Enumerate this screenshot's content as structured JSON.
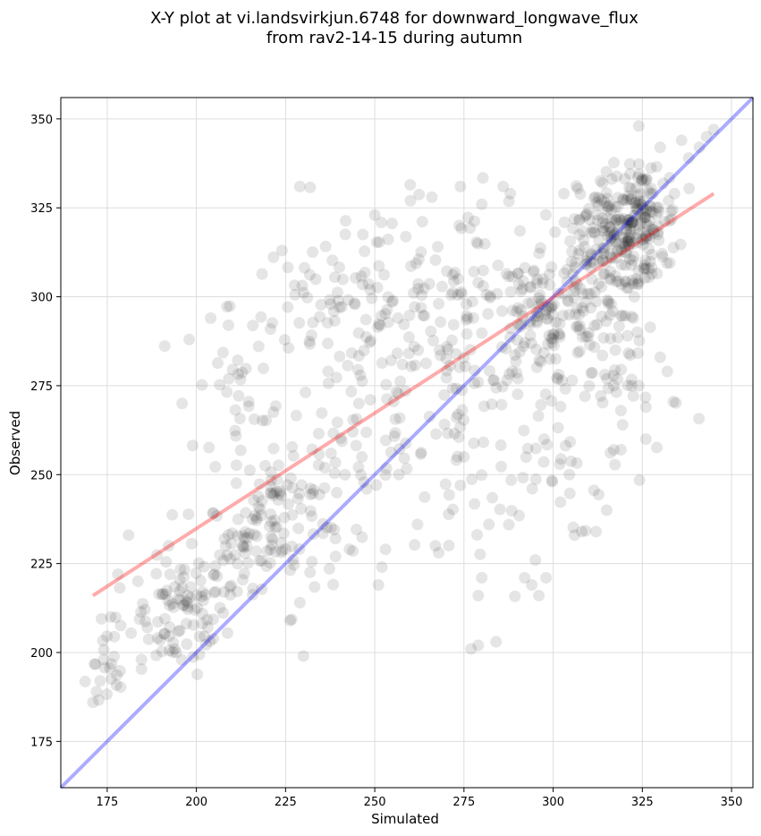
{
  "chart_data": {
    "type": "scatter",
    "title_line1": "X-Y plot at vi.landsvirkjun.6748 for downward_longwave_flux",
    "title_line2": "from rav2-14-15 during autumn",
    "xlabel": "Simulated",
    "ylabel": "Observed",
    "xlim": [
      162,
      356
    ],
    "ylim": [
      162,
      356
    ],
    "x_ticks": [
      175,
      200,
      225,
      250,
      275,
      300,
      325,
      350
    ],
    "y_ticks": [
      175,
      200,
      225,
      250,
      275,
      300,
      325,
      350
    ],
    "grid": true,
    "marker_color": "#000000",
    "marker_alpha": 0.1,
    "identity_line": {
      "color": "#0000ff",
      "alpha": 0.33,
      "from": [
        162,
        162
      ],
      "to": [
        356,
        356
      ]
    },
    "fit_line": {
      "color": "#ff0000",
      "alpha": 0.33,
      "from": [
        171,
        216
      ],
      "to": [
        345,
        329
      ]
    },
    "clusters": [
      {
        "cx": 175,
        "cy": 195,
        "sx": 3,
        "sy": 6,
        "n": 14
      },
      {
        "cx": 180,
        "cy": 206,
        "sx": 4,
        "sy": 6,
        "n": 12
      },
      {
        "cx": 196,
        "cy": 210,
        "sx": 6,
        "sy": 8,
        "n": 85
      },
      {
        "cx": 207,
        "cy": 228,
        "sx": 6,
        "sy": 10,
        "n": 40
      },
      {
        "cx": 212,
        "cy": 270,
        "sx": 6,
        "sy": 14,
        "n": 30
      },
      {
        "cx": 222,
        "cy": 237,
        "sx": 6,
        "sy": 9,
        "n": 80
      },
      {
        "cx": 237,
        "cy": 250,
        "sx": 10,
        "sy": 12,
        "n": 45
      },
      {
        "cx": 238,
        "cy": 298,
        "sx": 14,
        "sy": 10,
        "n": 70
      },
      {
        "cx": 258,
        "cy": 270,
        "sx": 14,
        "sy": 24,
        "n": 90
      },
      {
        "cx": 272,
        "cy": 300,
        "sx": 14,
        "sy": 14,
        "n": 80
      },
      {
        "cx": 282,
        "cy": 265,
        "sx": 12,
        "sy": 22,
        "n": 55
      },
      {
        "cx": 297,
        "cy": 295,
        "sx": 6,
        "sy": 10,
        "n": 80
      },
      {
        "cx": 302,
        "cy": 270,
        "sx": 10,
        "sy": 18,
        "n": 45
      },
      {
        "cx": 308,
        "cy": 300,
        "sx": 6,
        "sy": 12,
        "n": 70
      },
      {
        "cx": 319,
        "cy": 318,
        "sx": 6,
        "sy": 9,
        "n": 170
      },
      {
        "cx": 325,
        "cy": 322,
        "sx": 5,
        "sy": 7,
        "n": 80
      },
      {
        "cx": 320,
        "cy": 285,
        "sx": 8,
        "sy": 18,
        "n": 45
      }
    ],
    "points": [
      [
        171,
        186
      ],
      [
        172,
        189
      ],
      [
        173,
        192
      ],
      [
        174,
        198
      ],
      [
        176,
        210
      ],
      [
        181,
        233
      ],
      [
        178,
        222
      ],
      [
        196,
        270
      ],
      [
        198,
        288
      ],
      [
        204,
        294
      ],
      [
        209,
        292
      ],
      [
        224,
        313
      ],
      [
        229,
        331
      ],
      [
        250,
        323
      ],
      [
        260,
        327
      ],
      [
        266,
        328
      ],
      [
        274,
        331
      ],
      [
        280,
        326
      ],
      [
        286,
        331
      ],
      [
        288,
        329
      ],
      [
        303,
        329
      ],
      [
        324,
        348
      ],
      [
        330,
        342
      ],
      [
        336,
        344
      ],
      [
        338,
        339
      ],
      [
        341,
        342
      ],
      [
        343,
        345
      ],
      [
        345,
        347
      ],
      [
        334,
        329
      ],
      [
        326,
        260
      ],
      [
        332,
        279
      ],
      [
        330,
        283
      ],
      [
        295,
        226
      ],
      [
        294,
        219
      ],
      [
        292,
        221
      ],
      [
        296,
        216
      ],
      [
        298,
        221
      ],
      [
        284,
        203
      ],
      [
        279,
        202
      ],
      [
        277,
        201
      ],
      [
        280,
        221
      ],
      [
        279,
        216
      ],
      [
        282,
        236
      ],
      [
        267,
        230
      ],
      [
        262,
        236
      ],
      [
        251,
        219
      ],
      [
        252,
        224
      ],
      [
        253,
        229
      ],
      [
        230,
        199
      ],
      [
        229,
        214
      ],
      [
        239,
        227
      ],
      [
        239,
        232
      ],
      [
        312,
        234
      ],
      [
        308,
        234
      ],
      [
        306,
        233
      ],
      [
        315,
        240
      ],
      [
        317,
        257
      ],
      [
        319,
        257
      ],
      [
        322,
        275
      ],
      [
        324,
        275
      ],
      [
        317,
        275
      ],
      [
        319,
        268
      ],
      [
        326,
        269
      ],
      [
        275,
        255
      ],
      [
        274,
        247
      ]
    ]
  }
}
